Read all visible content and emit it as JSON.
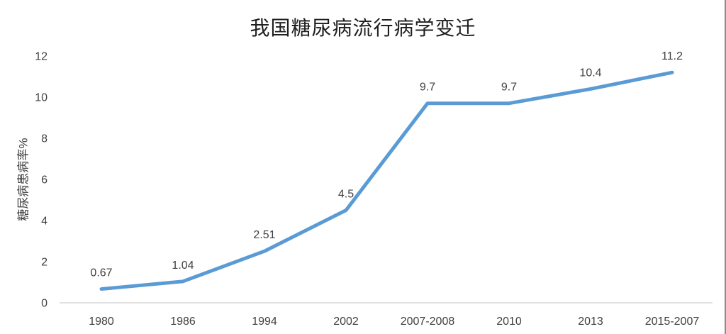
{
  "chart": {
    "title": "我国糖尿病流行病学变迁",
    "y_axis_title": "糖尿病患病率%"
  },
  "chart_data": {
    "type": "line",
    "title": "我国糖尿病流行病学变迁",
    "xlabel": "",
    "ylabel": "糖尿病患病率%",
    "categories": [
      "1980",
      "1986",
      "1994",
      "2002",
      "2007-2008",
      "2010",
      "2013",
      "2015-2007"
    ],
    "values": [
      0.67,
      1.04,
      2.51,
      4.5,
      9.7,
      9.7,
      10.4,
      11.2
    ],
    "data_labels": [
      "0.67",
      "1.04",
      "2.51",
      "4.5",
      "9.7",
      "9.7",
      "10.4",
      "11.2"
    ],
    "yticks": [
      0,
      2,
      4,
      6,
      8,
      10,
      12
    ],
    "ylim": [
      0,
      12
    ],
    "grid": false,
    "legend": "none",
    "series_name": "",
    "colors": {
      "line": "#5B9BD5",
      "axis_line": "#d9d9d9",
      "tick_text": "#404040",
      "label_text": "#404040",
      "title_text": "#1f1f1f"
    }
  }
}
